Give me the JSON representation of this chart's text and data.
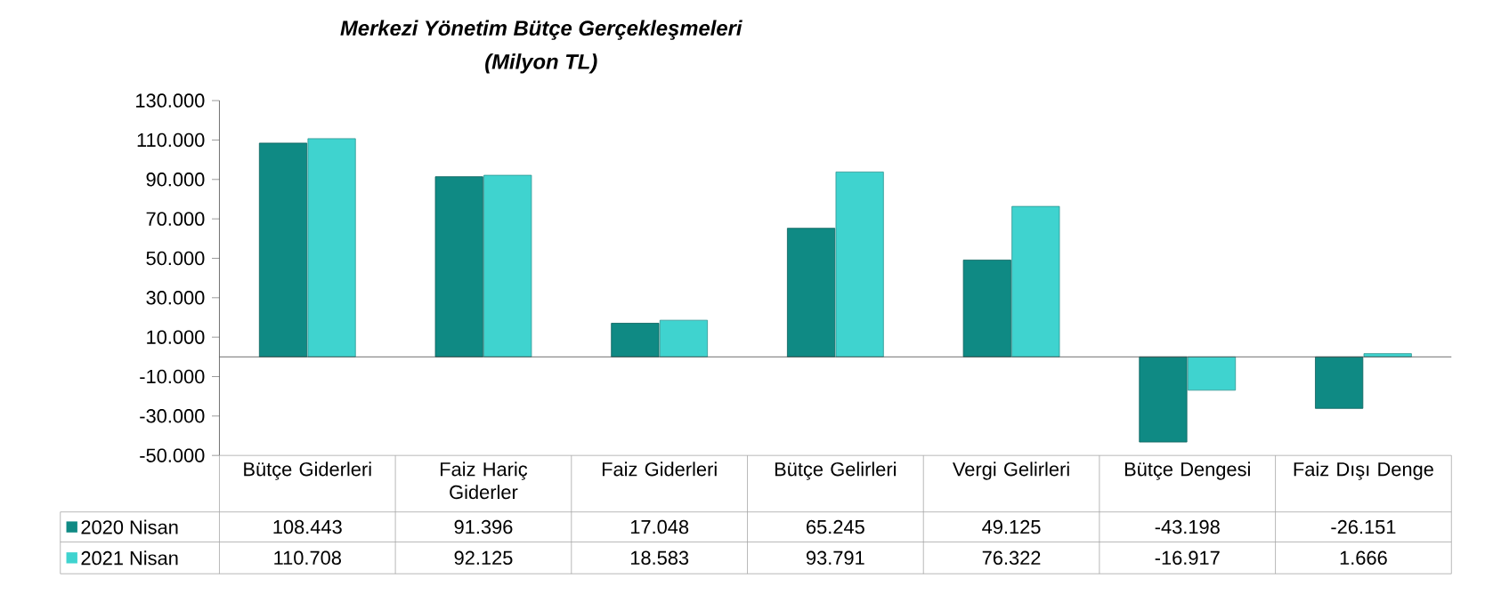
{
  "chart_data": {
    "type": "bar",
    "title": "Merkezi Yönetim Bütçe Gerçekleşmeleri",
    "subtitle": "(Milyon TL)",
    "categories": [
      "Bütçe Giderleri",
      "Faiz Hariç Giderler",
      "Faiz Giderleri",
      "Bütçe Gelirleri",
      "Vergi Gelirleri",
      "Bütçe Dengesi",
      "Faiz Dışı Denge"
    ],
    "series": [
      {
        "name": "2020  Nisan",
        "color": "#0f8a84",
        "values": [
          108443,
          91396,
          17048,
          65245,
          49125,
          -43198,
          -26151
        ],
        "value_labels": [
          "108.443",
          "91.396",
          "17.048",
          "65.245",
          "49.125",
          "-43.198",
          "-26.151"
        ]
      },
      {
        "name": "2021  Nisan",
        "color": "#3fd3cf",
        "values": [
          110708,
          92125,
          18583,
          93791,
          76322,
          -16917,
          1666
        ],
        "value_labels": [
          "110.708",
          "92.125",
          "18.583",
          "93.791",
          "76.322",
          "-16.917",
          "1.666"
        ]
      }
    ],
    "ylim": [
      -50000,
      130000
    ],
    "yticks": [
      {
        "value": -50000,
        "label": "-50.000"
      },
      {
        "value": -30000,
        "label": "-30.000"
      },
      {
        "value": -10000,
        "label": "-10.000"
      },
      {
        "value": 10000,
        "label": "10.000"
      },
      {
        "value": 30000,
        "label": "30.000"
      },
      {
        "value": 50000,
        "label": "50.000"
      },
      {
        "value": 70000,
        "label": "70.000"
      },
      {
        "value": 90000,
        "label": "90.000"
      },
      {
        "value": 110000,
        "label": "110.000"
      },
      {
        "value": 130000,
        "label": "130.000"
      }
    ],
    "legend": "bottom left",
    "grid": false
  }
}
